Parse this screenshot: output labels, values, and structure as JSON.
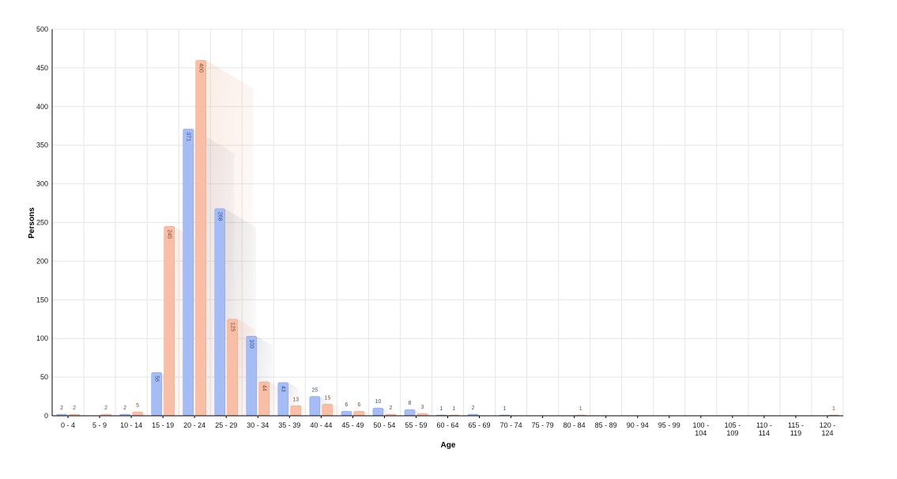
{
  "chart_data": {
    "type": "bar",
    "title": "",
    "xlabel": "Age",
    "ylabel": "Persons",
    "ylim": [
      0,
      500
    ],
    "yticks": [
      "0",
      "50",
      "100",
      "150",
      "200",
      "250",
      "300",
      "350",
      "400",
      "450",
      "500"
    ],
    "grid": true,
    "legend": "none",
    "categories": [
      [
        "0 - 4"
      ],
      [
        "5 - 9"
      ],
      [
        "10 - 14"
      ],
      [
        "15 - 19"
      ],
      [
        "20 - 24"
      ],
      [
        "25 - 29"
      ],
      [
        "30 - 34"
      ],
      [
        "35 - 39"
      ],
      [
        "40 - 44"
      ],
      [
        "45 - 49"
      ],
      [
        "50 - 54"
      ],
      [
        "55 - 59"
      ],
      [
        "60 - 64"
      ],
      [
        "65 - 69"
      ],
      [
        "70 - 74"
      ],
      [
        "75 - 79"
      ],
      [
        "80 - 84"
      ],
      [
        "85 - 89"
      ],
      [
        "90 - 94"
      ],
      [
        "95 - 99"
      ],
      [
        "100 -",
        "104"
      ],
      [
        "105 -",
        "109"
      ],
      [
        "110 -",
        "114"
      ],
      [
        "115 -",
        "119"
      ],
      [
        "120 -",
        "124"
      ]
    ],
    "series": [
      {
        "color": "#a6bcf5",
        "label_color": "#3a4f8a",
        "values": [
          2,
          0,
          2,
          56,
          371,
          268,
          103,
          43,
          25,
          6,
          10,
          8,
          1,
          2,
          1,
          0,
          0,
          0,
          0,
          0,
          0,
          0,
          0,
          0,
          0
        ]
      },
      {
        "color": "#f8bfa6",
        "label_color": "#8a4a32",
        "values": [
          2,
          2,
          5,
          245,
          460,
          125,
          44,
          13,
          15,
          6,
          2,
          3,
          1,
          0,
          0,
          0,
          1,
          0,
          0,
          0,
          0,
          0,
          0,
          0,
          1
        ]
      }
    ]
  }
}
